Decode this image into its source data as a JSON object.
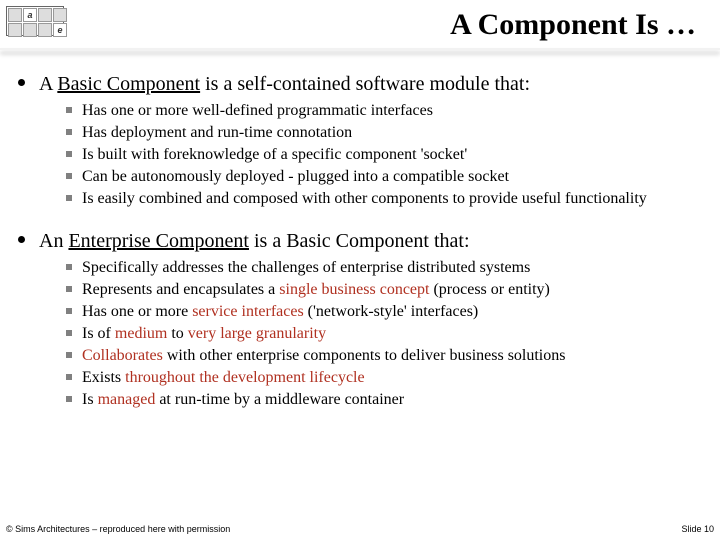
{
  "colors": {
    "text": "#000000",
    "highlight": "#b03020",
    "sub_bullet": "#808080",
    "background": "#ffffff"
  },
  "typography": {
    "title_fontsize_pt": 30,
    "level1_fontsize_pt": 20,
    "level2_fontsize_pt": 16,
    "footer_fontsize_pt": 9,
    "font_family": "Times New Roman"
  },
  "title": "A Component Is …",
  "section1": {
    "pre": "A ",
    "term": "Basic Component",
    "post": " is a self-contained software module that:",
    "bullets": [
      [
        {
          "t": "Has one or more well-defined programmatic interfaces"
        }
      ],
      [
        {
          "t": "Has deployment and run-time connotation"
        }
      ],
      [
        {
          "t": "Is built with foreknowledge of a specific component 'socket'"
        }
      ],
      [
        {
          "t": "Can be autonomously deployed - plugged into a compatible socket"
        }
      ],
      [
        {
          "t": "Is easily combined and composed with other components to provide useful functionality"
        }
      ]
    ]
  },
  "section2": {
    "pre": "An ",
    "term": "Enterprise Component",
    "post": " is a Basic Component that:",
    "bullets": [
      [
        {
          "t": "Specifically addresses the challenges of enterprise distributed systems"
        }
      ],
      [
        {
          "t": "Represents and encapsulates a "
        },
        {
          "t": "single business concept",
          "r": true
        },
        {
          "t": " (process or entity)"
        }
      ],
      [
        {
          "t": "Has one or more "
        },
        {
          "t": "service interfaces",
          "r": true
        },
        {
          "t": " ('network-style' interfaces)"
        }
      ],
      [
        {
          "t": "Is of "
        },
        {
          "t": "medium",
          "r": true
        },
        {
          "t": " to "
        },
        {
          "t": "very large granularity",
          "r": true
        }
      ],
      [
        {
          "t": "Collaborates",
          "r": true
        },
        {
          "t": " with other enterprise components to deliver business solutions"
        }
      ],
      [
        {
          "t": "Exists "
        },
        {
          "t": "throughout the development lifecycle",
          "r": true
        }
      ],
      [
        {
          "t": "Is "
        },
        {
          "t": "managed",
          "r": true
        },
        {
          "t": " at run-time by a middleware container"
        }
      ]
    ]
  },
  "footer": {
    "left": "© Sims Architectures – reproduced here with permission",
    "right": "Slide 10"
  },
  "logo": {
    "letters": [
      "a",
      "e"
    ]
  }
}
